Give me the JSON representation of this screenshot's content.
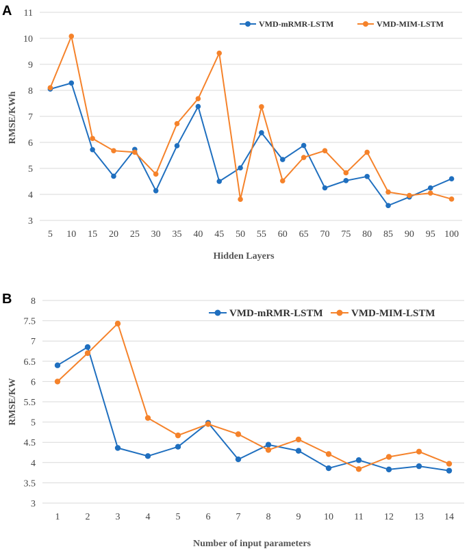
{
  "colors": {
    "series1": "#1f6fbf",
    "series2": "#f5822a",
    "grid": "#d9d9d9"
  },
  "chart_data": [
    {
      "panel": "A",
      "type": "line",
      "xlabel": "Hidden Layers",
      "ylabel": "RMSE/KWh",
      "ylim": [
        3,
        11
      ],
      "yticks": [
        "3",
        "4",
        "5",
        "6",
        "7",
        "8",
        "9",
        "10",
        "11"
      ],
      "categories": [
        "5",
        "10",
        "15",
        "20",
        "25",
        "30",
        "35",
        "40",
        "45",
        "50",
        "55",
        "60",
        "65",
        "70",
        "75",
        "80",
        "85",
        "90",
        "95",
        "100"
      ],
      "legend_position": "top-right",
      "series": [
        {
          "name": "VMD-mRMR-LSTM",
          "values": [
            8.05,
            8.28,
            5.72,
            4.7,
            5.73,
            4.14,
            5.87,
            7.38,
            4.5,
            5.02,
            6.37,
            5.34,
            5.88,
            4.25,
            4.53,
            4.69,
            3.57,
            3.9,
            4.25,
            4.6
          ]
        },
        {
          "name": "VMD-MIM-LSTM",
          "values": [
            8.1,
            10.08,
            6.15,
            5.68,
            5.62,
            4.78,
            6.72,
            7.68,
            9.43,
            3.81,
            7.37,
            4.52,
            5.42,
            5.68,
            4.83,
            5.62,
            4.09,
            3.96,
            4.05,
            3.82
          ]
        }
      ]
    },
    {
      "panel": "B",
      "type": "line",
      "xlabel": "Number of input parameters",
      "ylabel": "RMSE/KW",
      "ylim": [
        3,
        8
      ],
      "yticks": [
        "3",
        "3.5",
        "4",
        "4.5",
        "5",
        "5.5",
        "6",
        "6.5",
        "7",
        "7.5",
        "8"
      ],
      "categories": [
        "1",
        "2",
        "3",
        "4",
        "5",
        "6",
        "7",
        "8",
        "9",
        "10",
        "11",
        "12",
        "13",
        "14"
      ],
      "legend_position": "top-right",
      "series": [
        {
          "name": "VMD-mRMR-LSTM",
          "values": [
            6.4,
            6.85,
            4.36,
            4.16,
            4.39,
            4.98,
            4.08,
            4.44,
            4.29,
            3.86,
            4.06,
            3.83,
            3.91,
            3.8
          ]
        },
        {
          "name": "VMD-MIM-LSTM",
          "values": [
            6.0,
            6.7,
            7.43,
            5.1,
            4.67,
            4.95,
            4.7,
            4.31,
            4.57,
            4.21,
            3.84,
            4.14,
            4.27,
            3.97
          ]
        }
      ]
    }
  ]
}
